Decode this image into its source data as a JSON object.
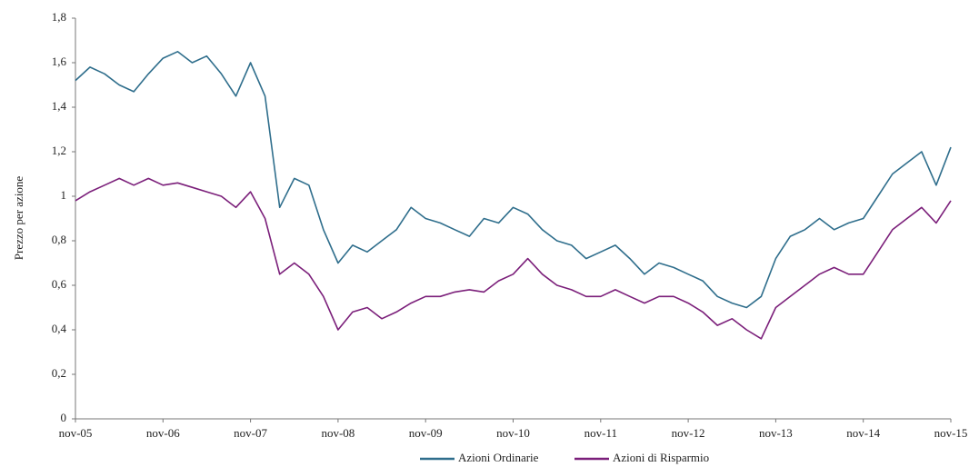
{
  "chart_data": {
    "type": "line",
    "ylabel": "Prezzo per azione",
    "categories": [
      "nov-05",
      null,
      null,
      null,
      null,
      null,
      "nov-06",
      null,
      null,
      null,
      null,
      null,
      "nov-07",
      null,
      null,
      null,
      null,
      null,
      "nov-08",
      null,
      null,
      null,
      null,
      null,
      "nov-09",
      null,
      null,
      null,
      null,
      null,
      "nov-10",
      null,
      null,
      null,
      null,
      null,
      "nov-11",
      null,
      null,
      null,
      null,
      null,
      "nov-12",
      null,
      null,
      null,
      null,
      null,
      "nov-13",
      null,
      null,
      null,
      null,
      null,
      "nov-14",
      null,
      null,
      null,
      null,
      null,
      "nov-15"
    ],
    "series": [
      {
        "name": "Azioni Ordinarie",
        "color": "#2f6e8c",
        "values": [
          1.52,
          1.58,
          1.55,
          1.5,
          1.47,
          1.55,
          1.62,
          1.65,
          1.6,
          1.63,
          1.55,
          1.45,
          1.6,
          1.45,
          0.95,
          1.08,
          1.05,
          0.85,
          0.7,
          0.78,
          0.75,
          0.8,
          0.85,
          0.95,
          0.9,
          0.88,
          0.85,
          0.82,
          0.9,
          0.88,
          0.95,
          0.92,
          0.85,
          0.8,
          0.78,
          0.72,
          0.75,
          0.78,
          0.72,
          0.65,
          0.7,
          0.68,
          0.65,
          0.62,
          0.55,
          0.52,
          0.5,
          0.55,
          0.72,
          0.82,
          0.85,
          0.9,
          0.85,
          0.88,
          0.9,
          1.0,
          1.1,
          1.15,
          1.2,
          1.05,
          1.22
        ]
      },
      {
        "name": "Azioni di Risparmio",
        "color": "#7b1f7a",
        "values": [
          0.98,
          1.02,
          1.05,
          1.08,
          1.05,
          1.08,
          1.05,
          1.06,
          1.04,
          1.02,
          1.0,
          0.95,
          1.02,
          0.9,
          0.65,
          0.7,
          0.65,
          0.55,
          0.4,
          0.48,
          0.5,
          0.45,
          0.48,
          0.52,
          0.55,
          0.55,
          0.57,
          0.58,
          0.57,
          0.62,
          0.65,
          0.72,
          0.65,
          0.6,
          0.58,
          0.55,
          0.55,
          0.58,
          0.55,
          0.52,
          0.55,
          0.55,
          0.52,
          0.48,
          0.42,
          0.45,
          0.4,
          0.36,
          0.5,
          0.55,
          0.6,
          0.65,
          0.68,
          0.65,
          0.65,
          0.75,
          0.85,
          0.9,
          0.95,
          0.88,
          0.98
        ]
      }
    ],
    "ylim": [
      0,
      1.8
    ],
    "yticks": [
      0,
      {
        "value": 0.2,
        "label": "0,2"
      },
      {
        "value": 0.4,
        "label": "0,4"
      },
      {
        "value": 0.6,
        "label": "0,6"
      },
      {
        "value": 0.8,
        "label": "0,8"
      },
      1,
      {
        "value": 1.2,
        "label": "1,2"
      },
      {
        "value": 1.4,
        "label": "1,4"
      },
      {
        "value": 1.6,
        "label": "1,6"
      },
      {
        "value": 1.8,
        "label": "1,8"
      }
    ],
    "grid": false
  }
}
